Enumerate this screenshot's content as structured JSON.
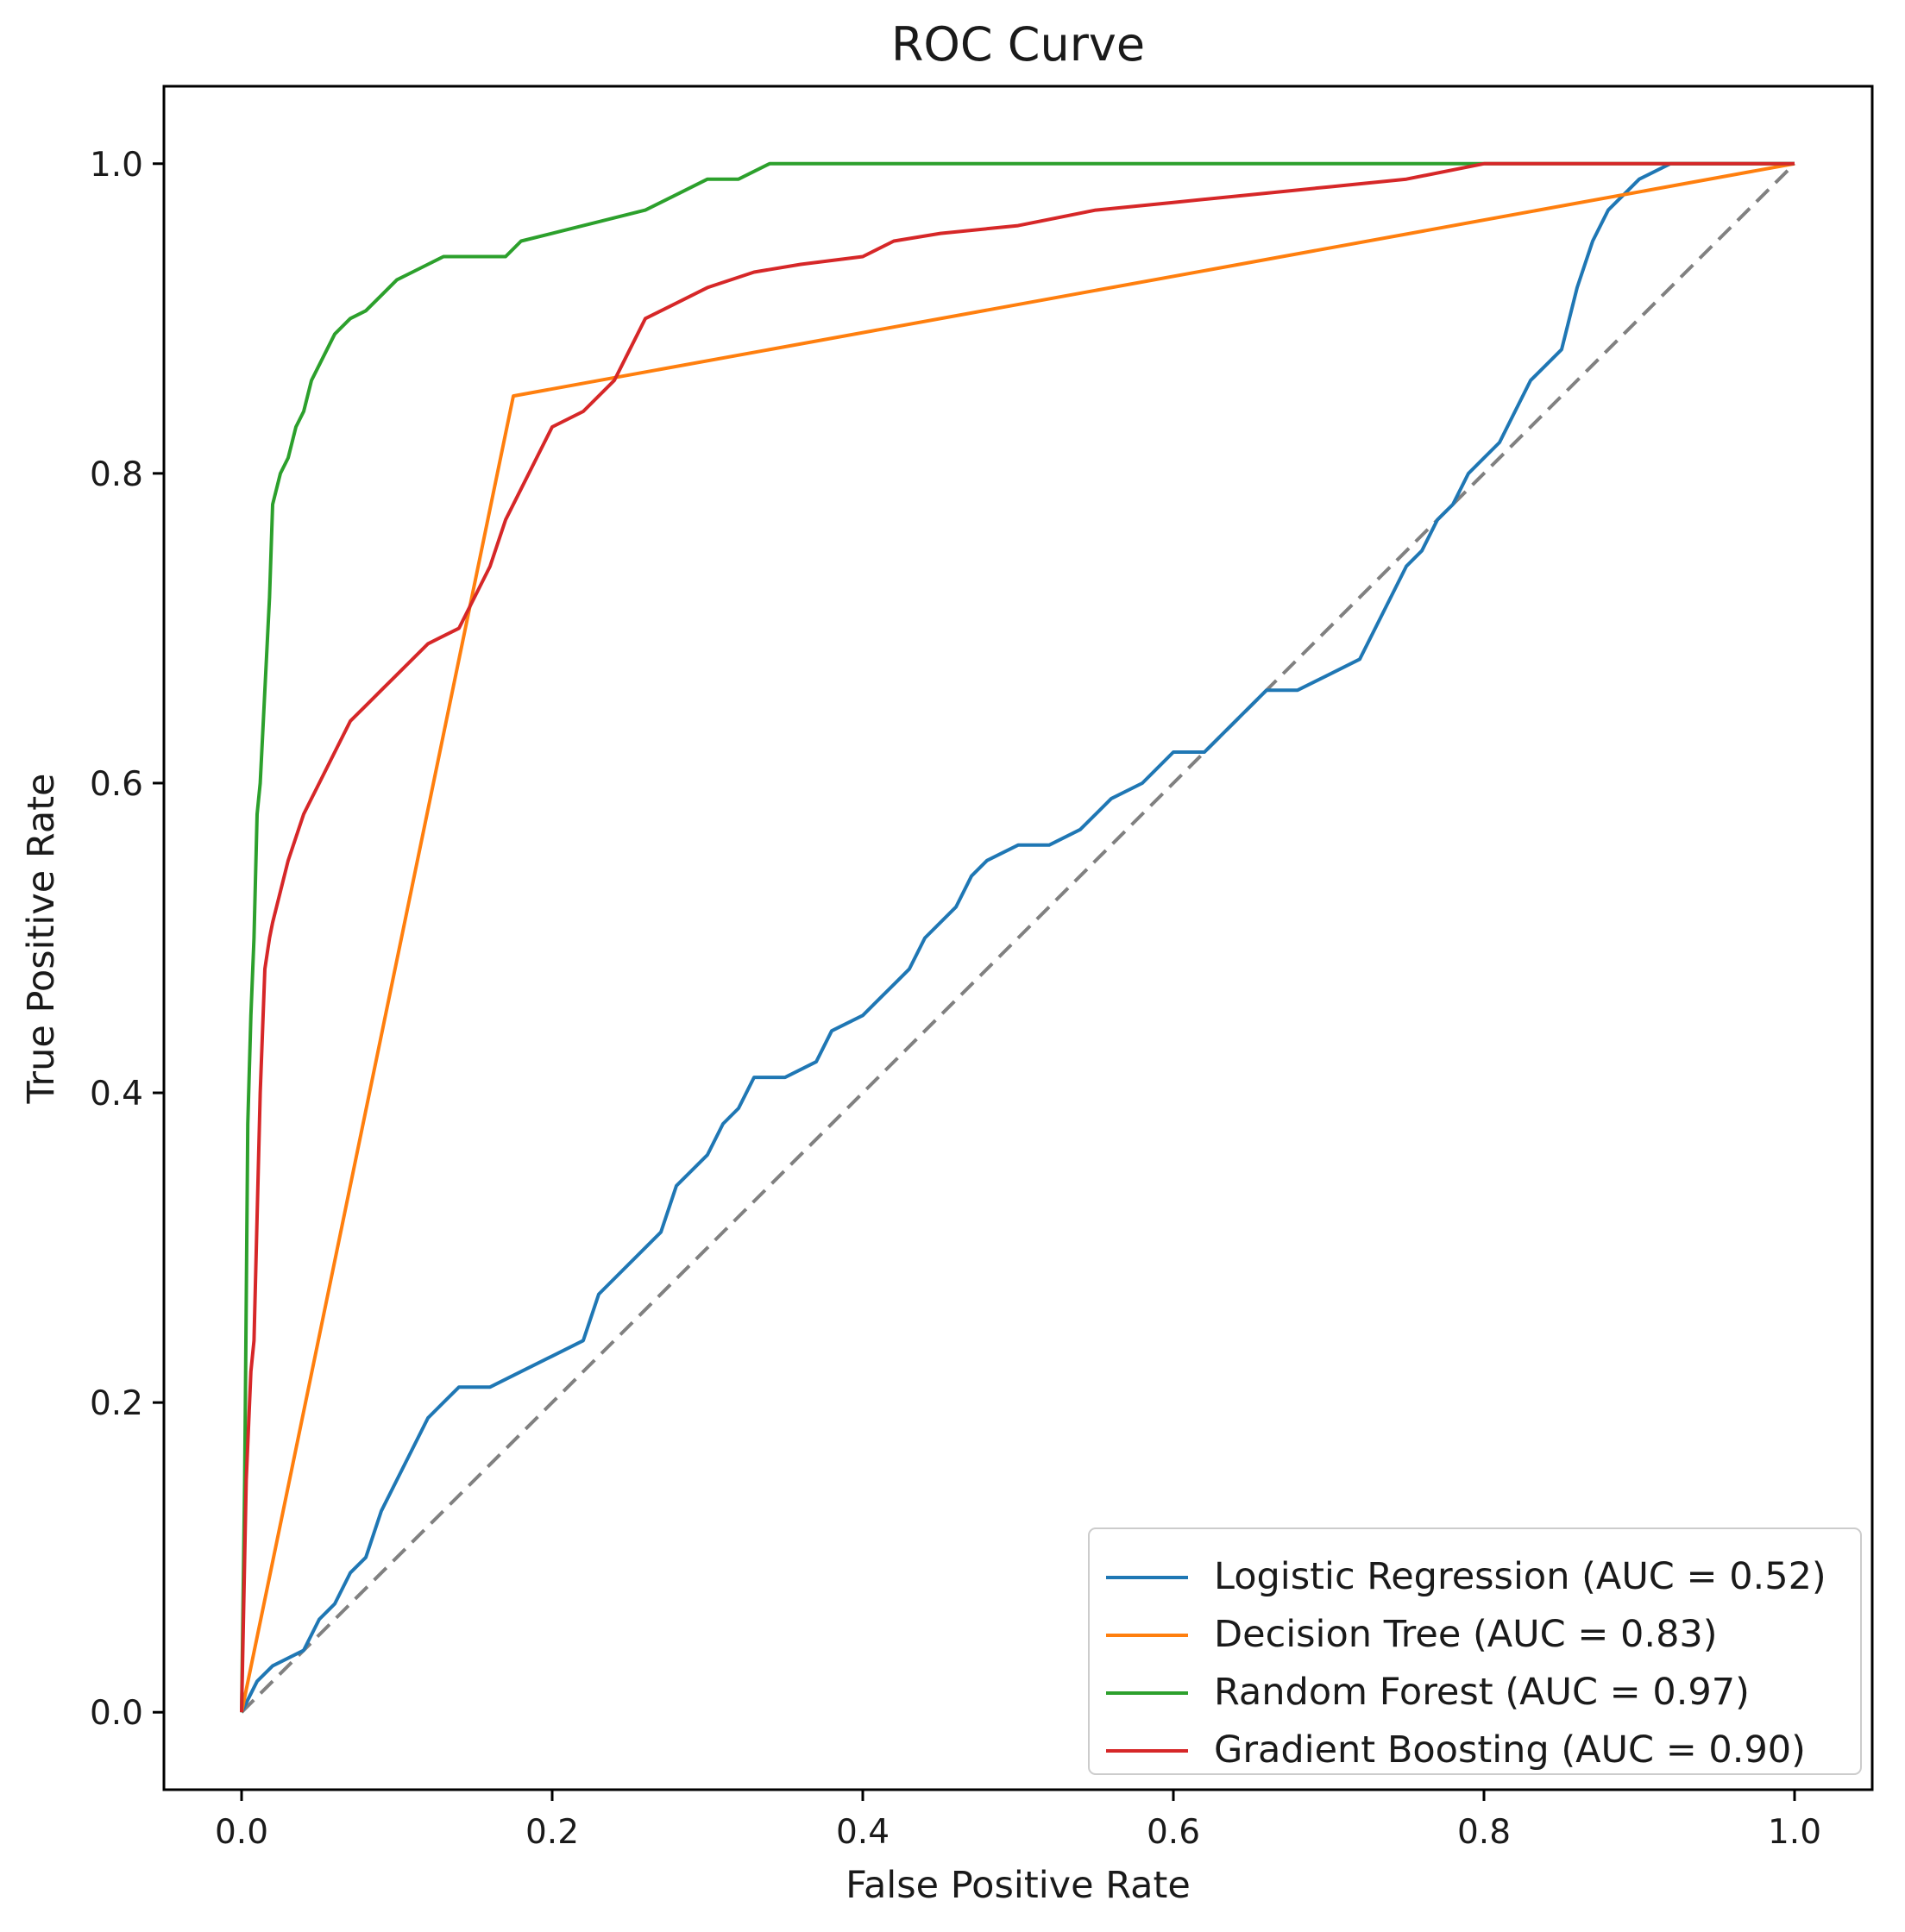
{
  "chart_data": {
    "type": "line",
    "title": "ROC Curve",
    "xlabel": "False Positive Rate",
    "ylabel": "True Positive Rate",
    "xlim": [
      -0.05,
      1.05
    ],
    "ylim": [
      -0.05,
      1.05
    ],
    "xticks": [
      0.0,
      0.2,
      0.4,
      0.6,
      0.8,
      1.0
    ],
    "xtick_labels": [
      "0.0",
      "0.2",
      "0.4",
      "0.6",
      "0.8",
      "1.0"
    ],
    "yticks": [
      0.0,
      0.2,
      0.4,
      0.6,
      0.8,
      1.0
    ],
    "ytick_labels": [
      "0.0",
      "0.2",
      "0.4",
      "0.6",
      "0.8",
      "1.0"
    ],
    "grid": false,
    "legend_position": "lower-right",
    "chance_line": {
      "name": "chance",
      "color": "#808080",
      "style": "dashed",
      "x": [
        0,
        1
      ],
      "y": [
        0,
        1
      ]
    },
    "series": [
      {
        "name": "Logistic Regression (AUC = 0.52)",
        "color": "#1f77b4",
        "x": [
          0,
          0.01,
          0.02,
          0.04,
          0.05,
          0.06,
          0.07,
          0.08,
          0.09,
          0.1,
          0.11,
          0.12,
          0.13,
          0.14,
          0.16,
          0.18,
          0.2,
          0.22,
          0.23,
          0.24,
          0.26,
          0.27,
          0.28,
          0.3,
          0.31,
          0.32,
          0.33,
          0.35,
          0.37,
          0.38,
          0.4,
          0.41,
          0.42,
          0.43,
          0.44,
          0.46,
          0.47,
          0.48,
          0.5,
          0.52,
          0.54,
          0.55,
          0.56,
          0.58,
          0.6,
          0.62,
          0.64,
          0.66,
          0.68,
          0.7,
          0.72,
          0.74,
          0.75,
          0.76,
          0.77,
          0.78,
          0.79,
          0.8,
          0.81,
          0.82,
          0.83,
          0.84,
          0.85,
          0.86,
          0.87,
          0.88,
          0.89,
          0.9,
          0.92,
          0.94,
          1.0
        ],
        "y": [
          0,
          0.02,
          0.03,
          0.04,
          0.06,
          0.07,
          0.09,
          0.1,
          0.13,
          0.15,
          0.17,
          0.19,
          0.2,
          0.21,
          0.21,
          0.22,
          0.23,
          0.24,
          0.27,
          0.28,
          0.3,
          0.31,
          0.34,
          0.36,
          0.38,
          0.39,
          0.41,
          0.41,
          0.42,
          0.44,
          0.45,
          0.46,
          0.47,
          0.48,
          0.5,
          0.52,
          0.54,
          0.55,
          0.56,
          0.56,
          0.57,
          0.58,
          0.59,
          0.6,
          0.62,
          0.62,
          0.64,
          0.66,
          0.66,
          0.67,
          0.68,
          0.72,
          0.74,
          0.75,
          0.77,
          0.78,
          0.8,
          0.81,
          0.82,
          0.84,
          0.86,
          0.87,
          0.88,
          0.92,
          0.95,
          0.97,
          0.98,
          0.99,
          1.0,
          1.0,
          1.0
        ]
      },
      {
        "name": "Decision Tree (AUC = 0.83)",
        "color": "#ff7f0e",
        "x": [
          0,
          0.175,
          1.0
        ],
        "y": [
          0,
          0.85,
          1.0
        ]
      },
      {
        "name": "Random Forest (AUC = 0.97)",
        "color": "#2ca02c",
        "x": [
          0,
          0.002,
          0.004,
          0.006,
          0.008,
          0.01,
          0.012,
          0.015,
          0.018,
          0.02,
          0.025,
          0.03,
          0.035,
          0.04,
          0.045,
          0.05,
          0.06,
          0.07,
          0.08,
          0.09,
          0.1,
          0.11,
          0.12,
          0.13,
          0.15,
          0.17,
          0.18,
          0.2,
          0.22,
          0.24,
          0.26,
          0.28,
          0.3,
          0.32,
          0.34,
          0.4,
          0.5,
          0.6,
          0.66,
          0.7,
          0.8,
          1.0
        ],
        "y": [
          0,
          0.15,
          0.38,
          0.45,
          0.5,
          0.58,
          0.6,
          0.66,
          0.72,
          0.78,
          0.8,
          0.81,
          0.83,
          0.84,
          0.86,
          0.87,
          0.89,
          0.9,
          0.905,
          0.915,
          0.925,
          0.93,
          0.935,
          0.94,
          0.94,
          0.94,
          0.95,
          0.955,
          0.96,
          0.965,
          0.97,
          0.98,
          0.99,
          0.99,
          1.0,
          1.0,
          1.0,
          1.0,
          1.0,
          1.0,
          1.0,
          1.0
        ]
      },
      {
        "name": "Gradient Boosting (AUC = 0.90)",
        "color": "#d62728",
        "x": [
          0,
          0.003,
          0.006,
          0.008,
          0.01,
          0.012,
          0.015,
          0.018,
          0.02,
          0.025,
          0.03,
          0.04,
          0.05,
          0.06,
          0.07,
          0.08,
          0.09,
          0.1,
          0.12,
          0.14,
          0.15,
          0.16,
          0.17,
          0.18,
          0.19,
          0.2,
          0.22,
          0.24,
          0.25,
          0.26,
          0.28,
          0.3,
          0.33,
          0.36,
          0.4,
          0.42,
          0.45,
          0.5,
          0.55,
          0.6,
          0.65,
          0.7,
          0.75,
          0.8,
          1.0
        ],
        "y": [
          0,
          0.15,
          0.22,
          0.24,
          0.32,
          0.4,
          0.48,
          0.5,
          0.51,
          0.53,
          0.55,
          0.58,
          0.6,
          0.62,
          0.64,
          0.65,
          0.66,
          0.67,
          0.69,
          0.7,
          0.72,
          0.74,
          0.77,
          0.79,
          0.81,
          0.83,
          0.84,
          0.86,
          0.88,
          0.9,
          0.91,
          0.92,
          0.93,
          0.935,
          0.94,
          0.95,
          0.955,
          0.96,
          0.97,
          0.975,
          0.98,
          0.985,
          0.99,
          1.0,
          1.0
        ]
      }
    ]
  }
}
